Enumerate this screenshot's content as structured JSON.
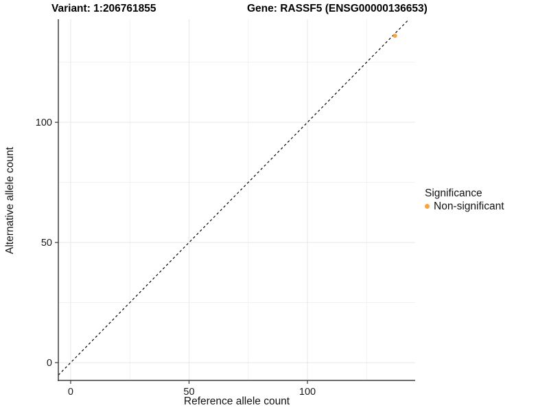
{
  "header": {
    "variant_title": "Variant: 1:206761855",
    "gene_title": "Gene: RASSF5 (ENSG00000136653)"
  },
  "axes": {
    "x_label": "Reference allele count",
    "y_label": "Alternative allele count"
  },
  "legend": {
    "title": "Significance",
    "items": [
      {
        "label": "Non-significant",
        "color": "#FBA338"
      }
    ]
  },
  "colors": {
    "point": "#FBA338",
    "reference_line": "#000000",
    "axis_line": "#3c3c3c",
    "tick": "#333333",
    "tick_label": "#1a1a1a",
    "grid_major": "#e7e7e7",
    "grid_minor": "#f1f1f1",
    "background": "#ffffff"
  },
  "chart_data": {
    "type": "scatter",
    "title": "Variant: 1:206761855   Gene: RASSF5 (ENSG00000136653)",
    "xlabel": "Reference allele count",
    "ylabel": "Alternative allele count",
    "xlim": [
      -5.2,
      145.5
    ],
    "ylim": [
      -7.4,
      142.9
    ],
    "x_ticks": [
      0,
      50,
      100
    ],
    "y_ticks": [
      0,
      50,
      100
    ],
    "x_minor_ticks": [
      25,
      75,
      125
    ],
    "y_minor_ticks": [
      25,
      75,
      125
    ],
    "grid": "major and minor gridlines, very light gray, no top/right border",
    "legend_position": "right",
    "series": [
      {
        "name": "Non-significant",
        "color": "#FBA338",
        "marker": "circle",
        "points": [
          {
            "x": 137,
            "y": 136
          }
        ]
      }
    ],
    "reference_line": {
      "type": "identity (y = x)",
      "style": "dashed",
      "color": "#000000"
    }
  }
}
